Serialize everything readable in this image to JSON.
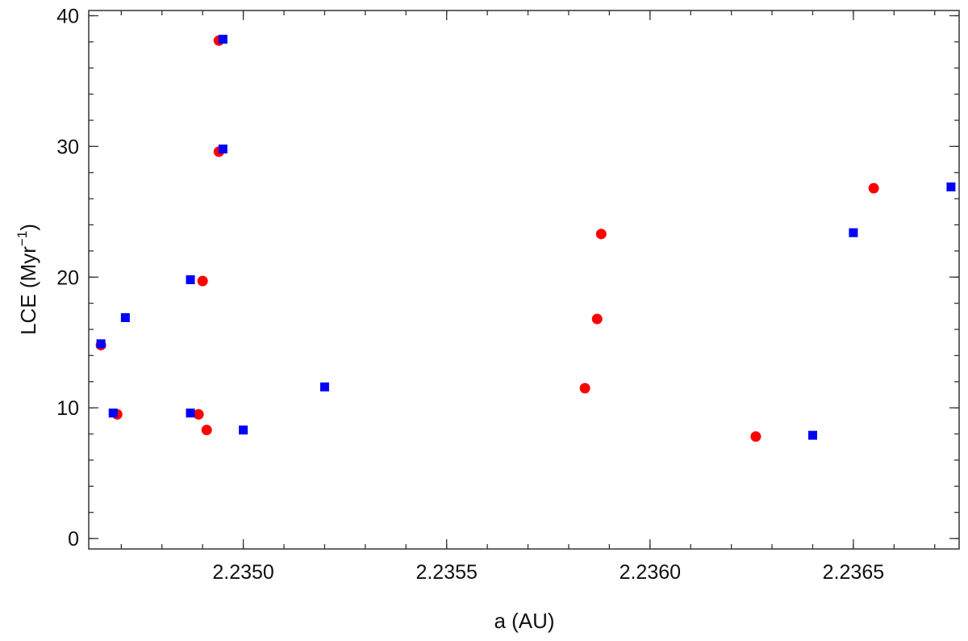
{
  "chart_data": {
    "type": "scatter",
    "xlabel": "a (AU)",
    "ylabel": {
      "base": "LCE (Myr",
      "sup": "−1",
      "end": ")"
    },
    "xlim": [
      2.23462,
      2.23676
    ],
    "ylim": [
      -0.8,
      40.4
    ],
    "x_ticks": [
      2.235,
      2.2355,
      2.236,
      2.2365
    ],
    "x_tick_labels": [
      "2.2350",
      "2.2355",
      "2.2360",
      "2.2365"
    ],
    "x_minor_step": 0.0001,
    "y_ticks": [
      0,
      10,
      20,
      30,
      40
    ],
    "y_tick_labels": [
      "0",
      "10",
      "20",
      "30",
      "40"
    ],
    "y_minor_step": 2,
    "grid": false,
    "legend": "none",
    "series": [
      {
        "marker": "circle",
        "color": "#ff0000",
        "points": [
          {
            "x": 2.23465,
            "y": 14.8
          },
          {
            "x": 2.23469,
            "y": 9.5
          },
          {
            "x": 2.23489,
            "y": 9.5
          },
          {
            "x": 2.2349,
            "y": 19.7
          },
          {
            "x": 2.23491,
            "y": 8.3
          },
          {
            "x": 2.23494,
            "y": 38.1
          },
          {
            "x": 2.23494,
            "y": 29.6
          },
          {
            "x": 2.23584,
            "y": 11.5
          },
          {
            "x": 2.23587,
            "y": 16.8
          },
          {
            "x": 2.23588,
            "y": 23.3
          },
          {
            "x": 2.23626,
            "y": 7.8
          },
          {
            "x": 2.23655,
            "y": 26.8
          }
        ]
      },
      {
        "marker": "square",
        "color": "#0000ff",
        "points": [
          {
            "x": 2.23465,
            "y": 14.9
          },
          {
            "x": 2.23468,
            "y": 9.6
          },
          {
            "x": 2.23471,
            "y": 16.9
          },
          {
            "x": 2.23487,
            "y": 19.8
          },
          {
            "x": 2.23487,
            "y": 9.6
          },
          {
            "x": 2.23495,
            "y": 38.2
          },
          {
            "x": 2.23495,
            "y": 29.8
          },
          {
            "x": 2.235,
            "y": 8.3
          },
          {
            "x": 2.2352,
            "y": 11.6
          },
          {
            "x": 2.2364,
            "y": 7.9
          },
          {
            "x": 2.2365,
            "y": 23.4
          },
          {
            "x": 2.23674,
            "y": 26.9
          }
        ]
      }
    ]
  }
}
